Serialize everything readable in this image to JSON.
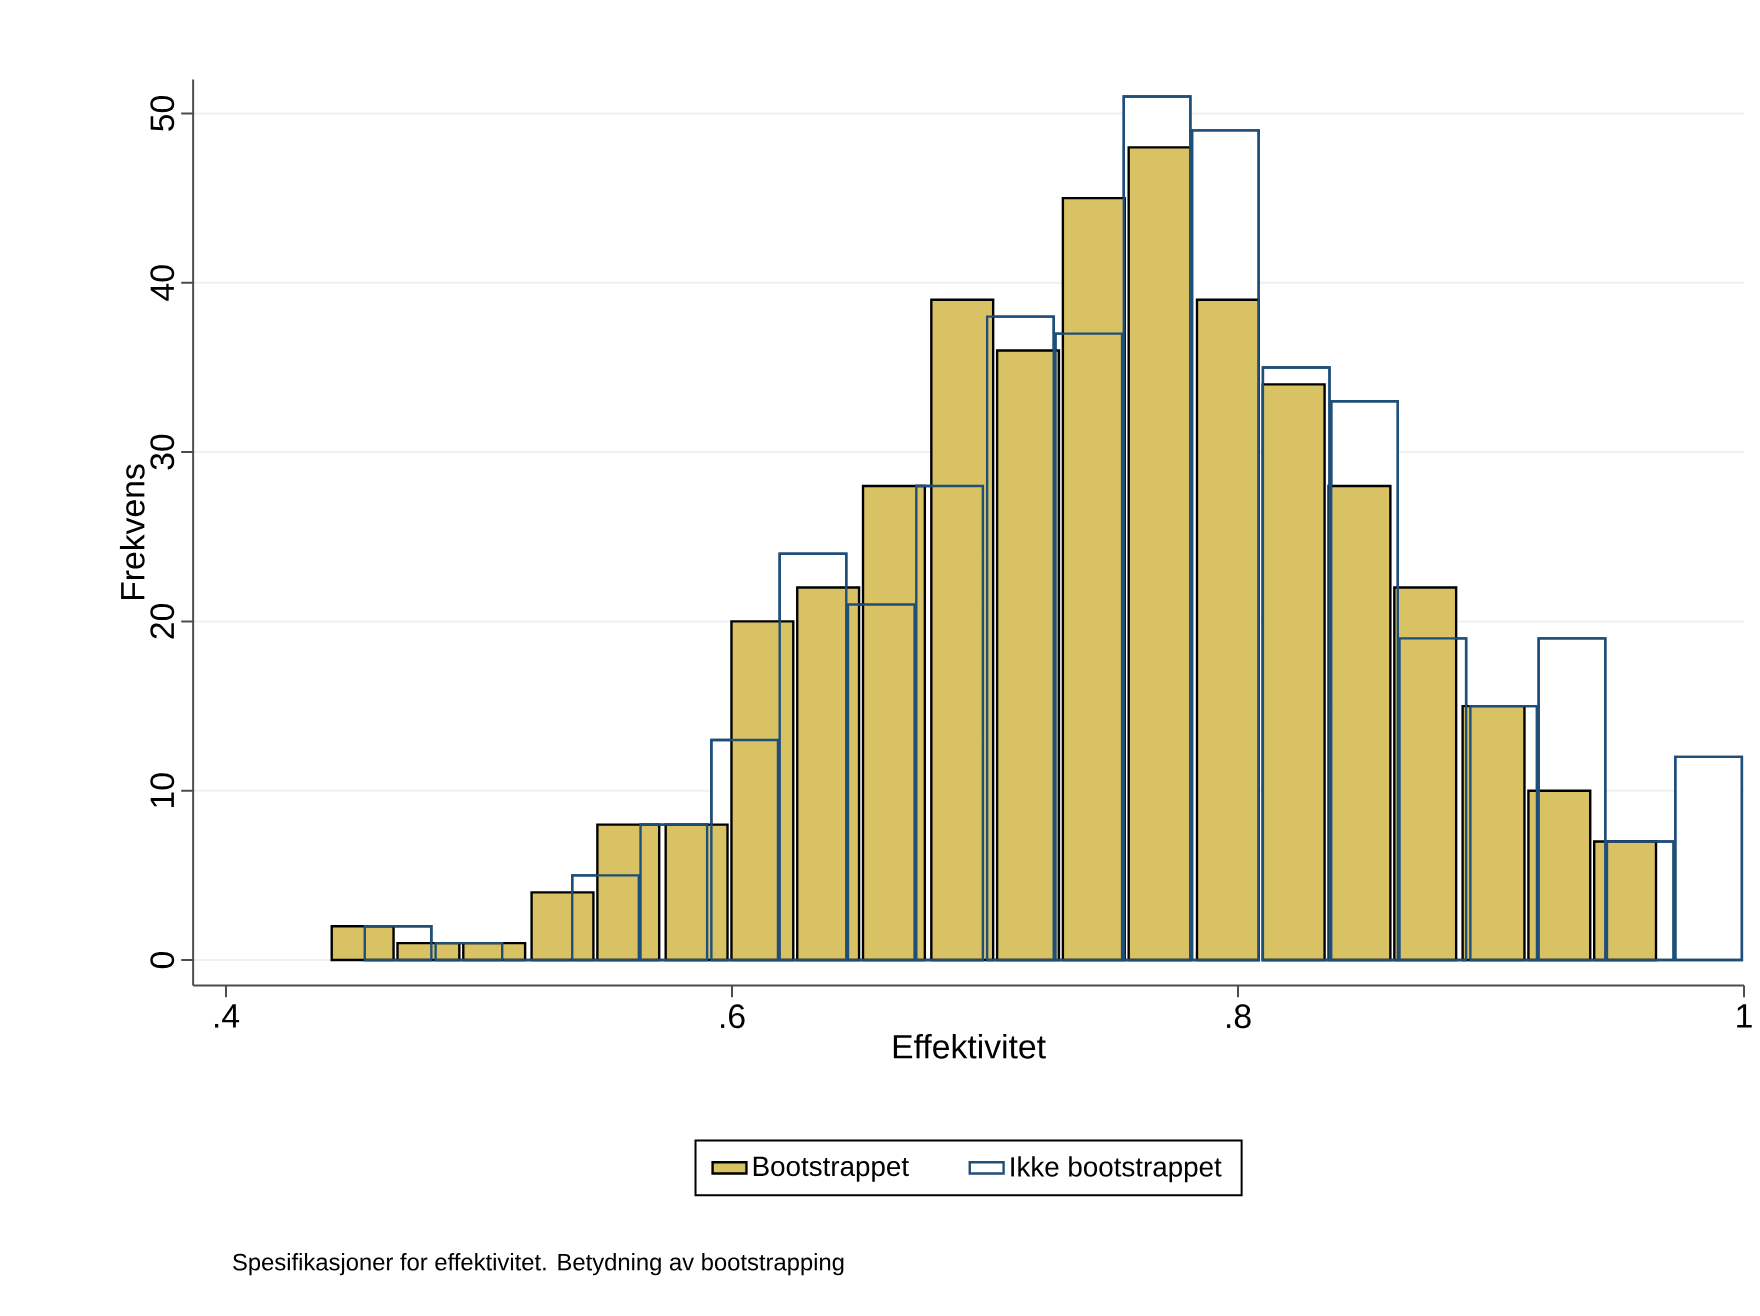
{
  "chart_data": {
    "type": "bar",
    "xlabel": "Effektivitet",
    "ylabel": "Frekvens",
    "series": [
      {
        "name": "Bootstrappet",
        "color": "#d8c263",
        "x": [
          0.454,
          0.48,
          0.506,
          0.533,
          0.559,
          0.586,
          0.612,
          0.638,
          0.664,
          0.691,
          0.717,
          0.743,
          0.769,
          0.796,
          0.822,
          0.848,
          0.874,
          0.901,
          0.927,
          0.953
        ],
        "values": [
          2,
          1,
          1,
          4,
          8,
          8,
          20,
          22,
          28,
          39,
          36,
          45,
          48,
          39,
          34,
          28,
          22,
          15,
          10,
          7
        ]
      },
      {
        "name": "Ikke bootstrappet",
        "color": "#1f4e79",
        "x": [
          0.468,
          0.496,
          0.523,
          0.55,
          0.577,
          0.605,
          0.632,
          0.659,
          0.686,
          0.714,
          0.741,
          0.768,
          0.795,
          0.823,
          0.85,
          0.877,
          0.905,
          0.932,
          0.959,
          0.986
        ],
        "values": [
          2,
          1,
          0,
          5,
          8,
          13,
          24,
          21,
          28,
          38,
          37,
          51,
          49,
          35,
          33,
          19,
          15,
          19,
          7,
          12
        ]
      }
    ],
    "xlim": [
      0.387,
      1.0
    ],
    "ylim": [
      -1.5,
      52
    ],
    "xticks": [
      {
        "value": 0.4,
        "label": ".4"
      },
      {
        "value": 0.6,
        "label": ".6"
      },
      {
        "value": 0.8,
        "label": ".8"
      },
      1
    ],
    "yticks": [
      0,
      10,
      20,
      30,
      40,
      50
    ],
    "grid": "y",
    "legend": "bottom",
    "annotations": [
      "Spesifikasjoner for effektivitet. Betydning av bootstrapping"
    ]
  }
}
